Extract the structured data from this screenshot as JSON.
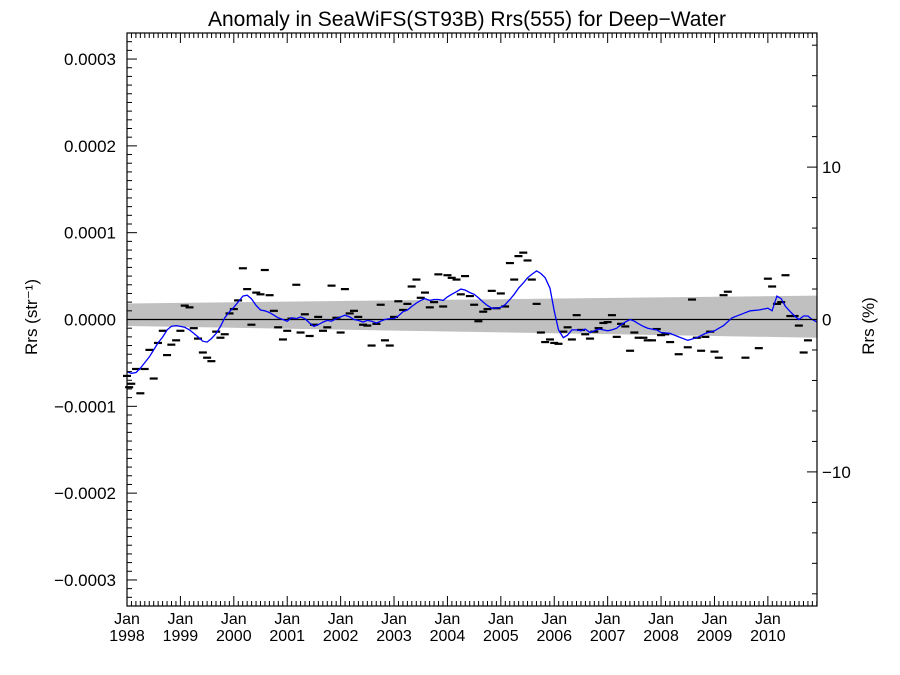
{
  "chart_data": {
    "type": "line",
    "title": "Anomaly in SeaWiFS(ST93B) Rrs(555) for Deep−Water",
    "ylabel_left": "Rrs (str⁻¹)",
    "ylabel_right": "Rrs (%)",
    "xlim": [
      1998.0,
      2010.92
    ],
    "ylim": [
      -0.00033,
      0.00033
    ],
    "ylim_right": [
      -18.8,
      18.8
    ],
    "x_ticks": [
      {
        "month": "Jan",
        "year": "1998",
        "x": 1998.0
      },
      {
        "month": "Jan",
        "year": "1999",
        "x": 1999.0
      },
      {
        "month": "Jan",
        "year": "2000",
        "x": 2000.0
      },
      {
        "month": "Jan",
        "year": "2001",
        "x": 2001.0
      },
      {
        "month": "Jan",
        "year": "2002",
        "x": 2002.0
      },
      {
        "month": "Jan",
        "year": "2003",
        "x": 2003.0
      },
      {
        "month": "Jan",
        "year": "2004",
        "x": 2004.0
      },
      {
        "month": "Jan",
        "year": "2005",
        "x": 2005.0
      },
      {
        "month": "Jan",
        "year": "2006",
        "x": 2006.0
      },
      {
        "month": "Jan",
        "year": "2007",
        "x": 2007.0
      },
      {
        "month": "Jan",
        "year": "2008",
        "x": 2008.0
      },
      {
        "month": "Jan",
        "year": "2009",
        "x": 2009.0
      },
      {
        "month": "Jan",
        "year": "2010",
        "x": 2010.0
      }
    ],
    "y_ticks_left": [
      {
        "value": 0.0003,
        "label": "0.0003"
      },
      {
        "value": 0.0002,
        "label": "0.0002"
      },
      {
        "value": 0.0001,
        "label": "0.0001"
      },
      {
        "value": 0.0,
        "label": "0.0000"
      },
      {
        "value": -0.0001,
        "label": "−0.0001"
      },
      {
        "value": -0.0002,
        "label": "−0.0002"
      },
      {
        "value": -0.0003,
        "label": "−0.0003"
      }
    ],
    "y_ticks_right": [
      {
        "value": 10,
        "label": "10"
      },
      {
        "value": 0,
        "label": "0"
      },
      {
        "value": -10,
        "label": "−10"
      }
    ],
    "confidence_band": {
      "x": [
        1998.0,
        2010.92
      ],
      "upper": [
        1.85e-05,
        2.75e-05
      ],
      "lower": [
        -7.5e-06,
        -2.1e-05
      ]
    },
    "zero_line": 0,
    "monthly_anomalies": [
      {
        "x": 1998.0,
        "y": -6.5e-05
      },
      {
        "x": 1998.04,
        "y": -7.8e-05
      },
      {
        "x": 1998.08,
        "y": -7.4e-05
      },
      {
        "x": 1998.17,
        "y": -5.7e-05
      },
      {
        "x": 1998.25,
        "y": -8.5e-05
      },
      {
        "x": 1998.33,
        "y": -5.7e-05
      },
      {
        "x": 1998.42,
        "y": -3.5e-05
      },
      {
        "x": 1998.5,
        "y": -6.8e-05
      },
      {
        "x": 1998.58,
        "y": -2.7e-05
      },
      {
        "x": 1998.67,
        "y": -1.3e-05
      },
      {
        "x": 1998.75,
        "y": -4.1e-05
      },
      {
        "x": 1998.83,
        "y": -2.9e-05
      },
      {
        "x": 1998.92,
        "y": -2.4e-05
      },
      {
        "x": 1999.0,
        "y": -1.3e-05
      },
      {
        "x": 1999.08,
        "y": 1.6e-05
      },
      {
        "x": 1999.17,
        "y": 1.4e-05
      },
      {
        "x": 1999.25,
        "y": -1e-05
      },
      {
        "x": 1999.33,
        "y": -2.2e-05
      },
      {
        "x": 1999.42,
        "y": -3.8e-05
      },
      {
        "x": 1999.5,
        "y": -4.4e-05
      },
      {
        "x": 1999.58,
        "y": -4.8e-05
      },
      {
        "x": 1999.67,
        "y": -1.4e-05
      },
      {
        "x": 1999.75,
        "y": -2.1e-05
      },
      {
        "x": 1999.83,
        "y": -1.7e-05
      },
      {
        "x": 1999.92,
        "y": 7e-06
      },
      {
        "x": 2000.0,
        "y": 1.2e-05
      },
      {
        "x": 2000.08,
        "y": 2.2e-05
      },
      {
        "x": 2000.17,
        "y": 5.9e-05
      },
      {
        "x": 2000.25,
        "y": 3.5e-05
      },
      {
        "x": 2000.33,
        "y": -6e-06
      },
      {
        "x": 2000.42,
        "y": 3.1e-05
      },
      {
        "x": 2000.5,
        "y": 2.9e-05
      },
      {
        "x": 2000.58,
        "y": 5.7e-05
      },
      {
        "x": 2000.67,
        "y": 2.8e-05
      },
      {
        "x": 2000.75,
        "y": 1e-05
      },
      {
        "x": 2000.83,
        "y": -9e-06
      },
      {
        "x": 2000.92,
        "y": -2.3e-05
      },
      {
        "x": 2001.0,
        "y": -1.3e-05
      },
      {
        "x": 2001.08,
        "y": 1e-06
      },
      {
        "x": 2001.17,
        "y": 4e-05
      },
      {
        "x": 2001.25,
        "y": -1.5e-05
      },
      {
        "x": 2001.33,
        "y": 6e-06
      },
      {
        "x": 2001.42,
        "y": -1.9e-05
      },
      {
        "x": 2001.5,
        "y": -6e-06
      },
      {
        "x": 2001.58,
        "y": 3e-06
      },
      {
        "x": 2001.67,
        "y": -1.3e-05
      },
      {
        "x": 2001.75,
        "y": -9e-06
      },
      {
        "x": 2001.83,
        "y": 3.9e-05
      },
      {
        "x": 2001.92,
        "y": 2e-06
      },
      {
        "x": 2002.0,
        "y": -1.5e-05
      },
      {
        "x": 2002.08,
        "y": 3.5e-05
      },
      {
        "x": 2002.17,
        "y": 7e-06
      },
      {
        "x": 2002.25,
        "y": 1e-05
      },
      {
        "x": 2002.33,
        "y": 3e-06
      },
      {
        "x": 2002.42,
        "y": -6e-06
      },
      {
        "x": 2002.5,
        "y": -7e-06
      },
      {
        "x": 2002.58,
        "y": -3e-05
      },
      {
        "x": 2002.67,
        "y": -5e-06
      },
      {
        "x": 2002.75,
        "y": 1.7e-05
      },
      {
        "x": 2002.83,
        "y": -2.4e-05
      },
      {
        "x": 2002.92,
        "y": -3e-05
      },
      {
        "x": 2003.0,
        "y": 3e-06
      },
      {
        "x": 2003.08,
        "y": 2.1e-05
      },
      {
        "x": 2003.17,
        "y": 1.1e-05
      },
      {
        "x": 2003.25,
        "y": 1.8e-05
      },
      {
        "x": 2003.33,
        "y": 3.8e-05
      },
      {
        "x": 2003.42,
        "y": 4.6e-05
      },
      {
        "x": 2003.5,
        "y": 2.5e-05
      },
      {
        "x": 2003.58,
        "y": 3.1e-05
      },
      {
        "x": 2003.67,
        "y": 1.4e-05
      },
      {
        "x": 2003.75,
        "y": 2e-05
      },
      {
        "x": 2003.83,
        "y": 5.2e-05
      },
      {
        "x": 2003.92,
        "y": 1.5e-05
      },
      {
        "x": 2004.0,
        "y": 5.1e-05
      },
      {
        "x": 2004.08,
        "y": 4.8e-05
      },
      {
        "x": 2004.17,
        "y": 4.6e-05
      },
      {
        "x": 2004.25,
        "y": 2.9e-05
      },
      {
        "x": 2004.33,
        "y": 5e-05
      },
      {
        "x": 2004.42,
        "y": 2.7e-05
      },
      {
        "x": 2004.5,
        "y": 1.7e-05
      },
      {
        "x": 2004.58,
        "y": -2e-06
      },
      {
        "x": 2004.67,
        "y": 9e-06
      },
      {
        "x": 2004.75,
        "y": 1.2e-05
      },
      {
        "x": 2004.83,
        "y": 3.3e-05
      },
      {
        "x": 2004.92,
        "y": 1.3e-05
      },
      {
        "x": 2005.0,
        "y": 3e-05
      },
      {
        "x": 2005.08,
        "y": 1.5e-05
      },
      {
        "x": 2005.17,
        "y": 6.5e-05
      },
      {
        "x": 2005.25,
        "y": 4.6e-05
      },
      {
        "x": 2005.33,
        "y": 7.3e-05
      },
      {
        "x": 2005.42,
        "y": 7.7e-05
      },
      {
        "x": 2005.5,
        "y": 6.8e-05
      },
      {
        "x": 2005.58,
        "y": 4.6e-05
      },
      {
        "x": 2005.67,
        "y": 1.8e-05
      },
      {
        "x": 2005.75,
        "y": -1.5e-05
      },
      {
        "x": 2005.83,
        "y": -2.6e-05
      },
      {
        "x": 2005.92,
        "y": -2.3e-05
      },
      {
        "x": 2006.0,
        "y": -2.7e-05
      },
      {
        "x": 2006.08,
        "y": -2.8e-05
      },
      {
        "x": 2006.17,
        "y": -1.4e-05
      },
      {
        "x": 2006.25,
        "y": -9e-06
      },
      {
        "x": 2006.33,
        "y": -2.3e-05
      },
      {
        "x": 2006.42,
        "y": 5e-06
      },
      {
        "x": 2006.5,
        "y": -1.2e-05
      },
      {
        "x": 2006.58,
        "y": -1.7e-05
      },
      {
        "x": 2006.67,
        "y": -2.2e-05
      },
      {
        "x": 2006.75,
        "y": -1.4e-05
      },
      {
        "x": 2006.83,
        "y": -1e-05
      },
      {
        "x": 2006.92,
        "y": -4e-06
      },
      {
        "x": 2007.0,
        "y": -3e-06
      },
      {
        "x": 2007.08,
        "y": 5e-06
      },
      {
        "x": 2007.17,
        "y": -2e-05
      },
      {
        "x": 2007.25,
        "y": -5e-06
      },
      {
        "x": 2007.33,
        "y": -8e-06
      },
      {
        "x": 2007.42,
        "y": -3.6e-05
      },
      {
        "x": 2007.5,
        "y": -1.5e-05
      },
      {
        "x": 2007.58,
        "y": -2.1e-05
      },
      {
        "x": 2007.67,
        "y": -2.1e-05
      },
      {
        "x": 2007.75,
        "y": -2.4e-05
      },
      {
        "x": 2007.83,
        "y": -2.4e-05
      },
      {
        "x": 2007.92,
        "y": -1.1e-05
      },
      {
        "x": 2008.0,
        "y": -1.8e-05
      },
      {
        "x": 2008.08,
        "y": -1.7e-05
      },
      {
        "x": 2008.17,
        "y": -2.6e-05
      },
      {
        "x": 2008.33,
        "y": -4e-05
      },
      {
        "x": 2008.5,
        "y": -3.2e-05
      },
      {
        "x": 2008.58,
        "y": 2.3e-05
      },
      {
        "x": 2008.67,
        "y": -2.1e-05
      },
      {
        "x": 2008.75,
        "y": -3.6e-05
      },
      {
        "x": 2008.83,
        "y": -2e-05
      },
      {
        "x": 2008.92,
        "y": -1.4e-05
      },
      {
        "x": 2009.0,
        "y": -3.7e-05
      },
      {
        "x": 2009.08,
        "y": -4.4e-05
      },
      {
        "x": 2009.17,
        "y": 2.8e-05
      },
      {
        "x": 2009.25,
        "y": 3.2e-05
      },
      {
        "x": 2009.58,
        "y": -4.4e-05
      },
      {
        "x": 2009.83,
        "y": -3.3e-05
      },
      {
        "x": 2010.0,
        "y": 4.7e-05
      },
      {
        "x": 2010.08,
        "y": 3.8e-05
      },
      {
        "x": 2010.17,
        "y": 1.8e-05
      },
      {
        "x": 2010.25,
        "y": 2e-05
      },
      {
        "x": 2010.33,
        "y": 5.1e-05
      },
      {
        "x": 2010.42,
        "y": 4e-06
      },
      {
        "x": 2010.5,
        "y": 4e-06
      },
      {
        "x": 2010.58,
        "y": -7e-06
      },
      {
        "x": 2010.67,
        "y": -3.8e-05
      },
      {
        "x": 2010.75,
        "y": -2.4e-05
      }
    ],
    "series": [
      {
        "color": "#0000ff",
        "x": [
          1998.0,
          1998.08,
          1998.17,
          1998.25,
          1998.33,
          1998.42,
          1998.5,
          1998.58,
          1998.67,
          1998.75,
          1998.83,
          1998.92,
          1999.0,
          1999.08,
          1999.17,
          1999.25,
          1999.33,
          1999.42,
          1999.5,
          1999.58,
          1999.67,
          1999.75,
          1999.83,
          1999.92,
          2000.0,
          2000.08,
          2000.17,
          2000.25,
          2000.33,
          2000.42,
          2000.5,
          2000.58,
          2000.67,
          2000.75,
          2000.83,
          2000.92,
          2001.0,
          2001.08,
          2001.17,
          2001.25,
          2001.33,
          2001.42,
          2001.5,
          2001.58,
          2001.67,
          2001.75,
          2001.83,
          2001.92,
          2002.0,
          2002.08,
          2002.17,
          2002.25,
          2002.33,
          2002.42,
          2002.5,
          2002.58,
          2002.67,
          2002.75,
          2002.83,
          2002.92,
          2003.0,
          2003.08,
          2003.17,
          2003.25,
          2003.33,
          2003.42,
          2003.5,
          2003.58,
          2003.67,
          2003.75,
          2003.83,
          2003.92,
          2004.0,
          2004.08,
          2004.17,
          2004.25,
          2004.33,
          2004.42,
          2004.5,
          2004.58,
          2004.67,
          2004.75,
          2004.83,
          2004.92,
          2005.0,
          2005.08,
          2005.17,
          2005.25,
          2005.33,
          2005.42,
          2005.5,
          2005.58,
          2005.67,
          2005.75,
          2005.83,
          2005.92,
          2006.0,
          2006.08,
          2006.17,
          2006.25,
          2006.33,
          2006.42,
          2006.5,
          2006.58,
          2006.67,
          2006.75,
          2006.83,
          2006.92,
          2007.0,
          2007.08,
          2007.17,
          2007.25,
          2007.33,
          2007.42,
          2007.5,
          2007.58,
          2007.67,
          2007.75,
          2007.83,
          2007.92,
          2008.0,
          2008.17,
          2008.33,
          2008.5,
          2008.67,
          2008.83,
          2009.0,
          2009.17,
          2009.33,
          2009.5,
          2009.67,
          2009.83,
          2010.0,
          2010.08,
          2010.17,
          2010.25,
          2010.33,
          2010.42,
          2010.5,
          2010.58,
          2010.67,
          2010.75,
          2010.83,
          2010.92
        ],
        "values": [
          -6e-05,
          -6.2e-05,
          -6.1e-05,
          -5.6e-05,
          -5e-05,
          -4.3e-05,
          -3.5e-05,
          -2.7e-05,
          -2e-05,
          -1.2e-05,
          -8e-06,
          -7e-06,
          -8e-06,
          -9e-06,
          -1.2e-05,
          -1.6e-05,
          -2e-05,
          -2.5e-05,
          -2.6e-05,
          -2.2e-05,
          -1.6e-05,
          -8e-06,
          2e-06,
          9e-06,
          1.4e-05,
          2e-05,
          2.7e-05,
          2.8e-05,
          2.4e-05,
          1.6e-05,
          1.1e-05,
          1e-05,
          8e-06,
          5e-06,
          2e-06,
          0.0,
          -2e-06,
          2e-06,
          1e-06,
          3e-06,
          1e-06,
          -4e-06,
          -8e-06,
          -6e-06,
          -3e-06,
          -1e-06,
          -2e-06,
          1e-06,
          3e-06,
          5e-06,
          3e-06,
          0.0,
          -1e-06,
          -3e-06,
          -1e-06,
          -2e-06,
          -4e-06,
          -2e-06,
          0.0,
          1e-06,
          1e-06,
          4e-06,
          9e-06,
          1.1e-05,
          1.5e-05,
          1.9e-05,
          2.2e-05,
          2.4e-05,
          2.2e-05,
          2.3e-05,
          2.3e-05,
          2.2e-05,
          2.6e-05,
          2.9e-05,
          3.2e-05,
          3.5e-05,
          3.4e-05,
          3.1e-05,
          2.9e-05,
          2.5e-05,
          2e-05,
          1.6e-05,
          1.3e-05,
          1.3e-05,
          1.4e-05,
          1.7e-05,
          2.3e-05,
          2.9e-05,
          3.6e-05,
          4.2e-05,
          4.8e-05,
          5.2e-05,
          5.6e-05,
          5.3e-05,
          4.8e-05,
          3.6e-05,
          1e-05,
          -1.2e-05,
          -2.1e-05,
          -1.8e-05,
          -1.2e-05,
          -1.2e-05,
          -1.3e-05,
          -1.1e-05,
          -1.5e-05,
          -1.3e-05,
          -1.1e-05,
          -1.2e-05,
          -1.3e-05,
          -1.2e-05,
          -1e-05,
          -6e-06,
          -3e-06,
          0.0,
          -2e-06,
          -5e-06,
          -8e-06,
          -1e-05,
          -1.1e-05,
          -1.2e-05,
          -1.5e-05,
          -1.6e-05,
          -2e-05,
          -2.4e-05,
          -2.1e-05,
          -1.6e-05,
          -1.3e-05,
          -7e-06,
          2e-06,
          6e-06,
          1e-05,
          1.1e-05,
          1.3e-05,
          1e-05,
          2.7e-05,
          2.4e-05,
          1.5e-05,
          9e-06,
          4e-06,
          0.0,
          4e-06,
          4e-06,
          0.0,
          -3e-06
        ]
      }
    ],
    "grid": false,
    "legend": "none"
  }
}
